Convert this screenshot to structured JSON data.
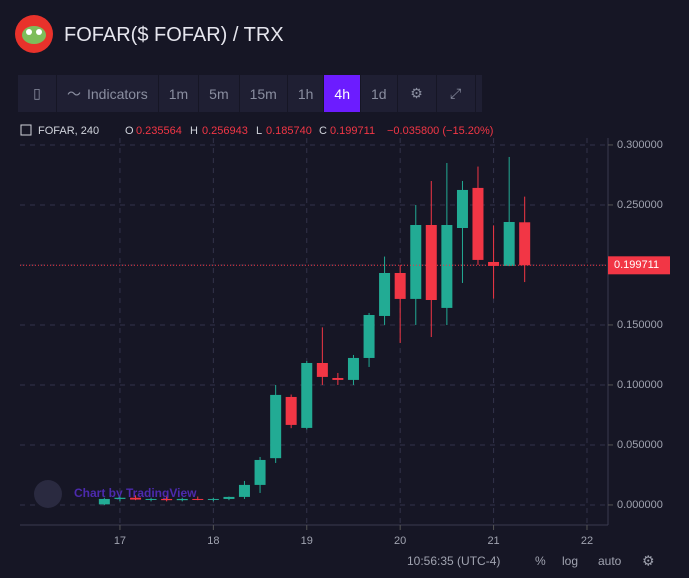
{
  "header": {
    "title": "FOFAR($ FOFAR) / TRX"
  },
  "toolbar": {
    "indicators": "Indicators",
    "intervals": [
      "1m",
      "5m",
      "15m",
      "1h",
      "4h",
      "1d"
    ],
    "active": 4
  },
  "chart_data": {
    "type": "candlestick",
    "legend": {
      "symbol": "FOFAR, 240",
      "o": "O",
      "open": "0.235564",
      "h": "H",
      "high": "0.256943",
      "l": "L",
      "low": "0.185740",
      "c": "C",
      "close": "0.199711",
      "change": "−0.035800 (−15.20%)"
    },
    "x": [
      16.833,
      17,
      17.167,
      17.333,
      17.5,
      17.667,
      17.833,
      18,
      18.167,
      18.333,
      18.5,
      18.667,
      18.833,
      19,
      19.167,
      19.333,
      19.5,
      19.667,
      19.833,
      20,
      20.167,
      20.333,
      20.5,
      20.667,
      20.833,
      21,
      21.167,
      21.333
    ],
    "open": [
      0.0005,
      0.005,
      0.006,
      0.0045,
      0.005,
      0.004,
      0.005,
      0.0045,
      0.005,
      0.0067,
      0.0167,
      0.039,
      0.09,
      0.0642,
      0.1183,
      0.1058,
      0.1042,
      0.1225,
      0.1575,
      0.1933,
      0.1717,
      0.2333,
      0.1642,
      0.2308,
      0.2642,
      0.2025,
      0.1992,
      0.235564
    ],
    "high": [
      0.006,
      0.007,
      0.008,
      0.006,
      0.007,
      0.006,
      0.007,
      0.006,
      0.007,
      0.02,
      0.04,
      0.1,
      0.092,
      0.12,
      0.148,
      0.11,
      0.125,
      0.16,
      0.207,
      0.2,
      0.25,
      0.27,
      0.285,
      0.27,
      0.282,
      0.233,
      0.29,
      0.256943
    ],
    "low": [
      0,
      0.003,
      0.004,
      0.003,
      0.003,
      0.003,
      0.004,
      0.003,
      0.004,
      0.005,
      0.01,
      0.035,
      0.064,
      0.063,
      0.1,
      0.1,
      0.1,
      0.115,
      0.15,
      0.135,
      0.15,
      0.14,
      0.15,
      0.185,
      0.2,
      0.172,
      0.199,
      0.18574
    ],
    "close": [
      0.005,
      0.006,
      0.0045,
      0.005,
      0.004,
      0.005,
      0.0045,
      0.005,
      0.0067,
      0.0167,
      0.0375,
      0.0917,
      0.0667,
      0.1183,
      0.1067,
      0.1042,
      0.1225,
      0.1583,
      0.1933,
      0.1717,
      0.2333,
      0.1708,
      0.2333,
      0.2625,
      0.2042,
      0.1992,
      0.2358,
      0.199711
    ],
    "up_color": "#22ab94",
    "down_color": "#f23645",
    "xlim": [
      15.93,
      22.225
    ],
    "xticks": [
      17,
      18,
      19,
      20,
      21,
      22
    ],
    "ylim": [
      -0.0167,
      0.3058
    ],
    "yticks": [
      {
        "value": 0,
        "label": "0.000000"
      },
      {
        "value": 0.05,
        "label": "0.050000"
      },
      {
        "value": 0.1,
        "label": "0.100000"
      },
      {
        "value": 0.15,
        "label": "0.150000"
      },
      {
        "value": 0.2,
        "label": "0.200000"
      },
      {
        "value": 0.25,
        "label": "0.250000"
      },
      {
        "value": 0.3,
        "label": "0.300000"
      }
    ],
    "grid": true,
    "watermark": "Chart by TradingView"
  },
  "footer": {
    "time": "10:56:35 (UTC-4)",
    "percent": "%",
    "log": "log",
    "auto": "auto"
  }
}
